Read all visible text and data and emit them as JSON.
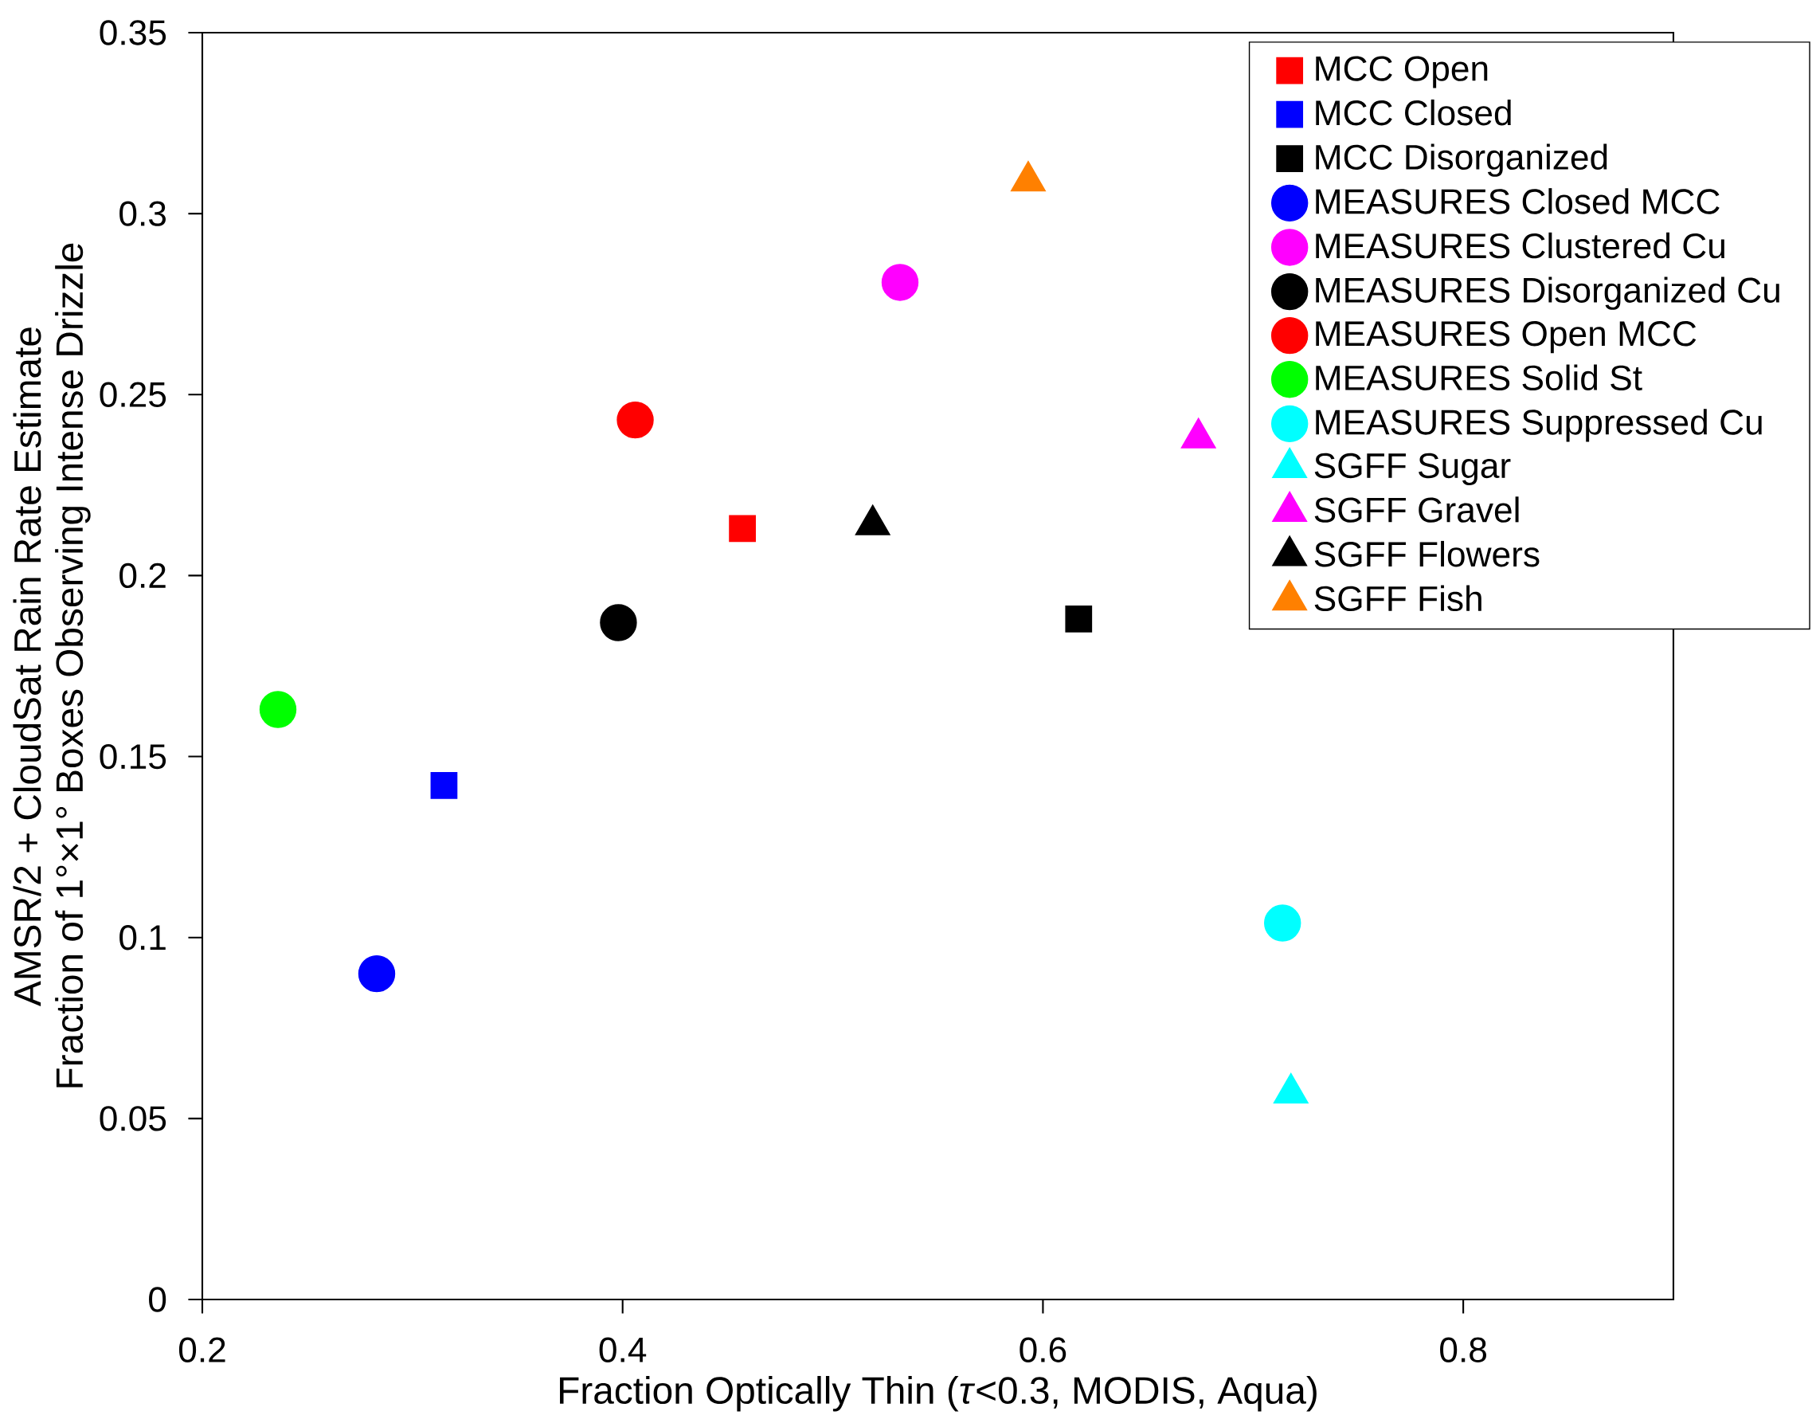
{
  "chart_data": {
    "type": "scatter",
    "xlabel": "Fraction Optically Thin (*τ*<0.3, MODIS, Aqua)",
    "ylabel": [
      "AMSR/2 + CloudSat Rain Rate Estimate",
      "Fraction of 1°×1° Boxes Observing Intense Drizzle"
    ],
    "xlim": [
      0.2,
      0.9
    ],
    "ylim": [
      0,
      0.35
    ],
    "xticks": [
      0.2,
      0.4,
      0.6,
      0.8
    ],
    "yticks": [
      0,
      0.05,
      0.1,
      0.15,
      0.2,
      0.25,
      0.3,
      0.35
    ],
    "grid": false,
    "legend": "top right",
    "series": [
      {
        "name": "MCC Open",
        "color": "#ff0000",
        "marker": "square",
        "x": [
          0.457
        ],
        "values": [
          0.213
        ]
      },
      {
        "name": "MCC Closed",
        "color": "#0000ff",
        "marker": "square",
        "x": [
          0.315
        ],
        "values": [
          0.142
        ]
      },
      {
        "name": "MCC Disorganized",
        "color": "#000000",
        "marker": "square",
        "x": [
          0.617
        ],
        "values": [
          0.188
        ]
      },
      {
        "name": "MEASURES Closed MCC",
        "color": "#0000ff",
        "marker": "circle",
        "x": [
          0.283
        ],
        "values": [
          0.09
        ]
      },
      {
        "name": "MEASURES Clustered Cu",
        "color": "#ff00ff",
        "marker": "circle",
        "x": [
          0.532
        ],
        "values": [
          0.281
        ]
      },
      {
        "name": "MEASURES Disorganized Cu",
        "color": "#000000",
        "marker": "circle",
        "x": [
          0.398
        ],
        "values": [
          0.187
        ]
      },
      {
        "name": "MEASURES Open MCC",
        "color": "#ff0000",
        "marker": "circle",
        "x": [
          0.406
        ],
        "values": [
          0.243
        ]
      },
      {
        "name": "MEASURES Solid St",
        "color": "#00ff00",
        "marker": "circle",
        "x": [
          0.236
        ],
        "values": [
          0.163
        ]
      },
      {
        "name": "MEASURES Suppressed Cu",
        "color": "#00ffff",
        "marker": "circle",
        "x": [
          0.714
        ],
        "values": [
          0.104
        ]
      },
      {
        "name": "SGFF Sugar",
        "color": "#00ffff",
        "marker": "triangle",
        "x": [
          0.718
        ],
        "values": [
          0.057
        ]
      },
      {
        "name": "SGFF Gravel",
        "color": "#ff00ff",
        "marker": "triangle",
        "x": [
          0.674
        ],
        "values": [
          0.238
        ]
      },
      {
        "name": "SGFF Flowers",
        "color": "#000000",
        "marker": "triangle",
        "x": [
          0.519
        ],
        "values": [
          0.214
        ]
      },
      {
        "name": "SGFF Fish",
        "color": "#ff8000",
        "marker": "triangle",
        "x": [
          0.593
        ],
        "values": [
          0.309
        ]
      }
    ]
  }
}
